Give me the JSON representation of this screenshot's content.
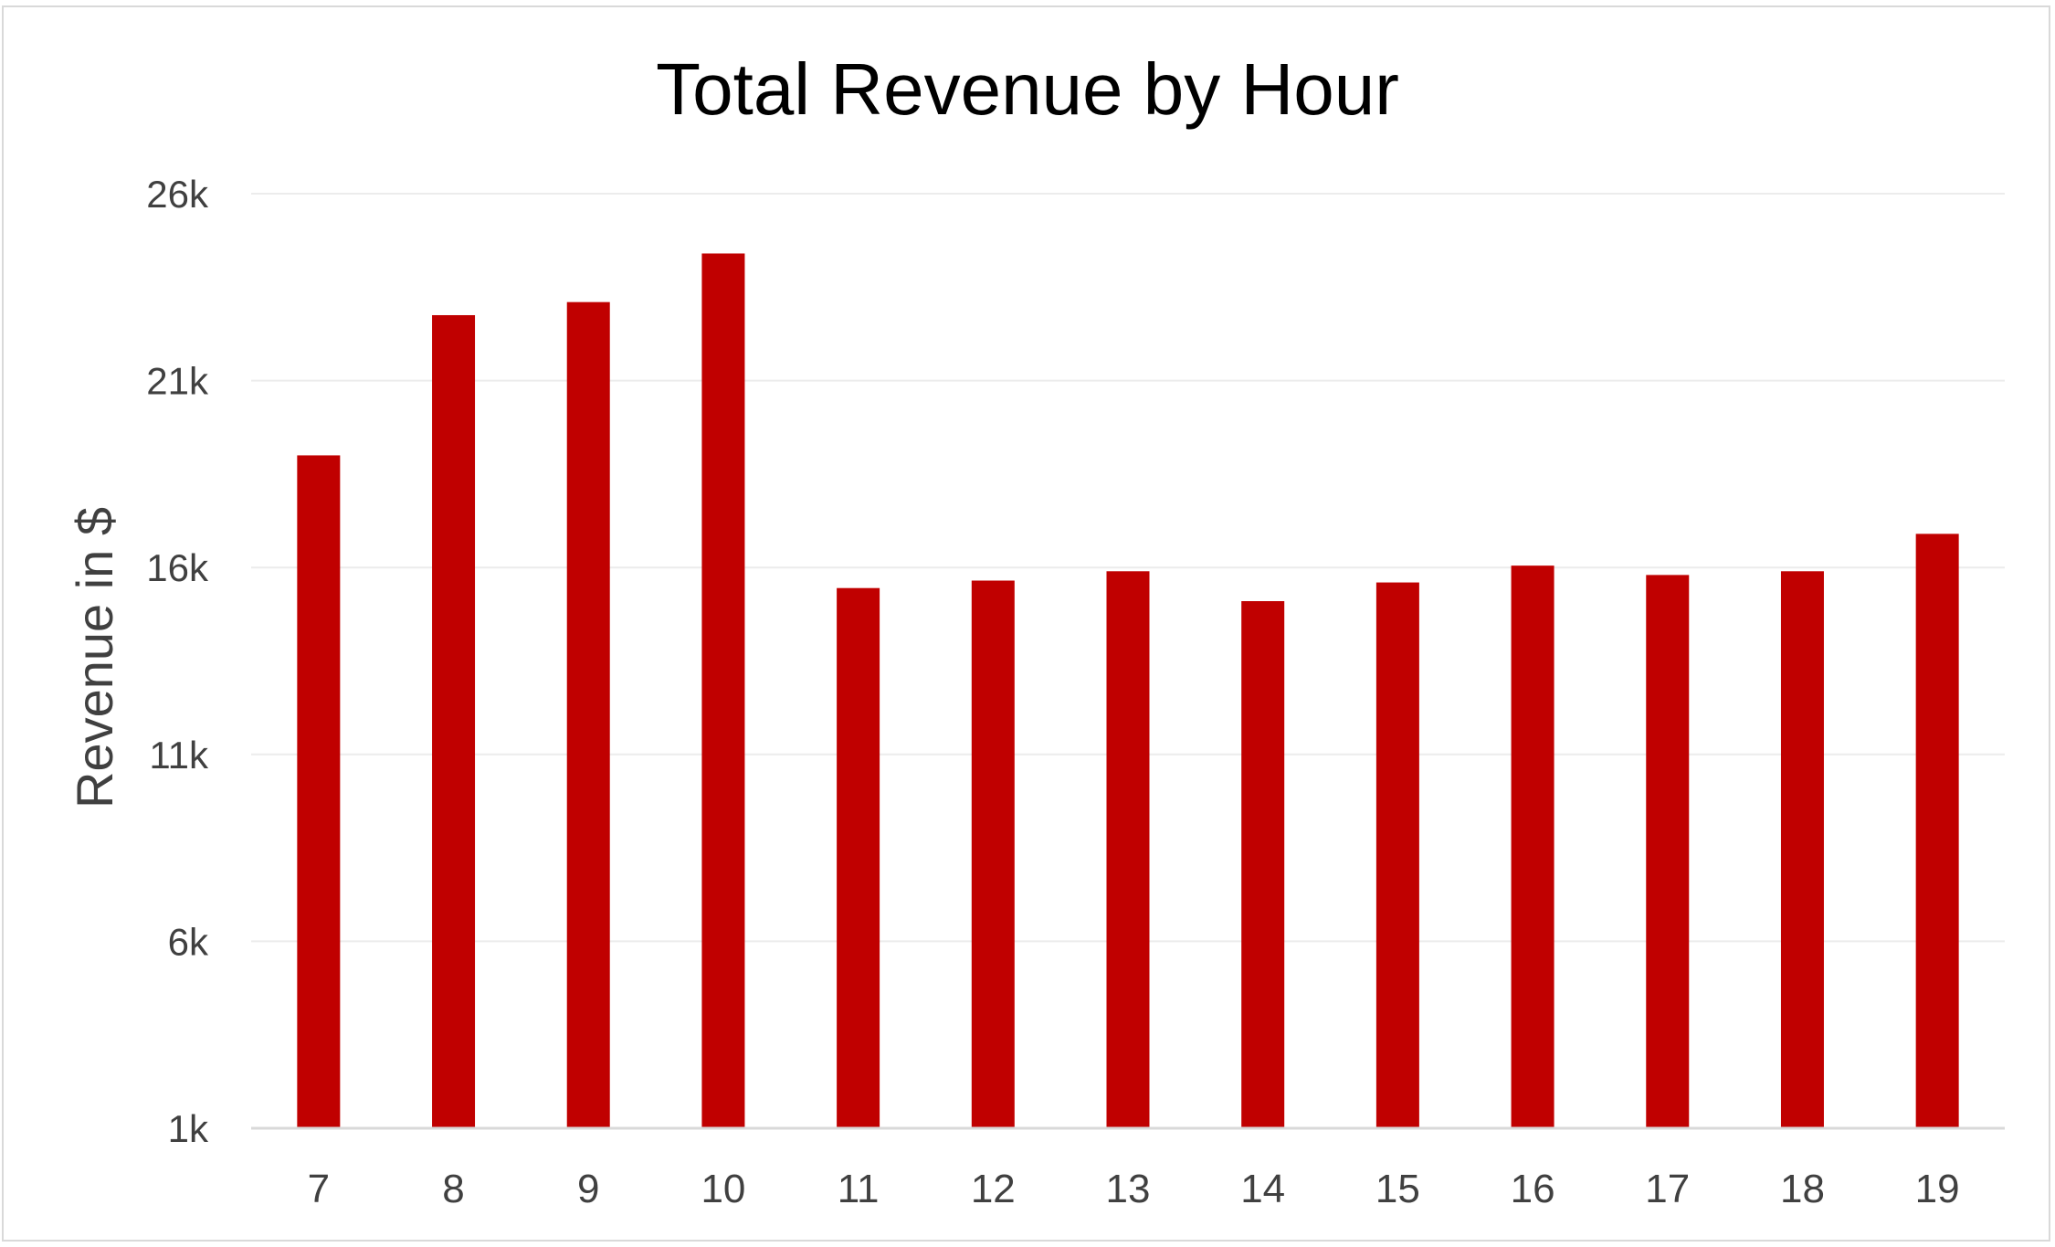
{
  "chart_data": {
    "type": "bar",
    "title": "Total Revenue by Hour",
    "xlabel": "",
    "ylabel": "Revenue in $",
    "categories": [
      "7",
      "8",
      "9",
      "10",
      "11",
      "12",
      "13",
      "14",
      "15",
      "16",
      "17",
      "18",
      "19"
    ],
    "values": [
      19000,
      22750,
      23100,
      24400,
      15450,
      15650,
      15900,
      15100,
      15600,
      16050,
      15800,
      15900,
      16900
    ],
    "ylim": [
      1000,
      26000
    ],
    "yticks": [
      1000,
      6000,
      11000,
      16000,
      21000,
      26000
    ],
    "ytick_labels": [
      "1k",
      "6k",
      "11k",
      "16k",
      "21k",
      "26k"
    ],
    "grid": true,
    "legend": "none",
    "colors": {
      "bar": "#c00000",
      "text": "#404040",
      "grid": "#ececec",
      "axis": "#d9d9d9"
    }
  }
}
